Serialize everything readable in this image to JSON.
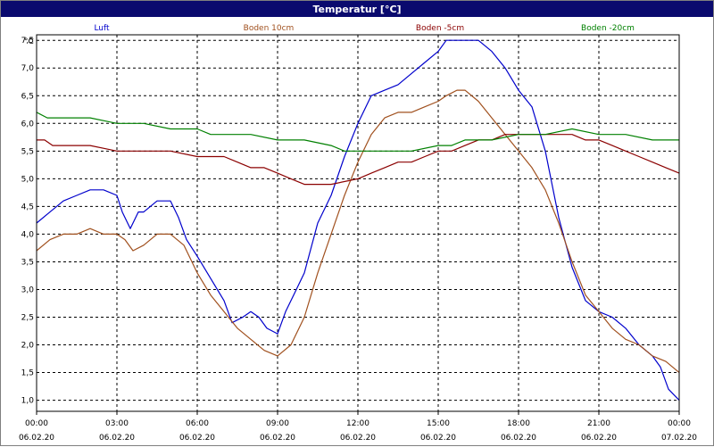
{
  "window": {
    "title": "Temperatur [°C]"
  },
  "chart_data": {
    "type": "line",
    "ylabel": "°C",
    "ylim": [
      0.8,
      7.6
    ],
    "yticks": [
      1.0,
      1.5,
      2.0,
      2.5,
      3.0,
      3.5,
      4.0,
      4.5,
      5.0,
      5.5,
      6.0,
      6.5,
      7.0,
      7.5
    ],
    "ytick_labels": [
      "1,0",
      "1,5",
      "2,0",
      "2,5",
      "3,0",
      "3,5",
      "4,0",
      "4,5",
      "5,0",
      "5,5",
      "6,0",
      "6,5",
      "7,0",
      "7,5"
    ],
    "xlim": [
      0,
      24
    ],
    "xticks": [
      0,
      3,
      6,
      9,
      12,
      15,
      18,
      21,
      24
    ],
    "xtick_times": [
      "00:00",
      "03:00",
      "06:00",
      "09:00",
      "12:00",
      "15:00",
      "18:00",
      "21:00",
      "00:00"
    ],
    "xtick_dates": [
      "06.02.20",
      "06.02.20",
      "06.02.20",
      "06.02.20",
      "06.02.20",
      "06.02.20",
      "06.02.20",
      "06.02.20",
      "07.02.20"
    ],
    "grid": true,
    "legend_position": "top",
    "series": [
      {
        "name": "Luft",
        "color": "#0000cc",
        "x": [
          0,
          0.5,
          1,
          1.5,
          2,
          2.5,
          3,
          3.2,
          3.5,
          3.8,
          4,
          4.5,
          5,
          5.3,
          5.6,
          6,
          6.5,
          7,
          7.3,
          7.7,
          8,
          8.3,
          8.6,
          9,
          9.3,
          9.6,
          10,
          10.5,
          11,
          11.5,
          12,
          12.5,
          13,
          13.5,
          14,
          14.5,
          15,
          15.3,
          15.7,
          16,
          16.5,
          17,
          17.5,
          18,
          18.5,
          19,
          19.5,
          20,
          20.5,
          21,
          21.5,
          22,
          22.5,
          23,
          23.3,
          23.6,
          24
        ],
        "y": [
          4.2,
          4.4,
          4.6,
          4.7,
          4.8,
          4.8,
          4.7,
          4.4,
          4.1,
          4.4,
          4.4,
          4.6,
          4.6,
          4.3,
          3.9,
          3.6,
          3.2,
          2.8,
          2.4,
          2.5,
          2.6,
          2.5,
          2.3,
          2.2,
          2.6,
          2.9,
          3.3,
          4.2,
          4.7,
          5.4,
          6.0,
          6.5,
          6.6,
          6.7,
          6.9,
          7.1,
          7.3,
          7.5,
          7.5,
          7.5,
          7.5,
          7.3,
          7.0,
          6.6,
          6.3,
          5.5,
          4.3,
          3.4,
          2.8,
          2.6,
          2.5,
          2.3,
          2.0,
          1.8,
          1.6,
          1.2,
          1.0
        ]
      },
      {
        "name": "Boden 10cm",
        "color": "#a0501e",
        "x": [
          0,
          0.5,
          1,
          1.5,
          2,
          2.5,
          3,
          3.3,
          3.6,
          4,
          4.5,
          5,
          5.5,
          6,
          6.5,
          7,
          7.5,
          8,
          8.5,
          9,
          9.5,
          10,
          10.5,
          11,
          11.5,
          12,
          12.5,
          13,
          13.5,
          14,
          14.5,
          15,
          15.3,
          15.7,
          16,
          16.5,
          17,
          17.5,
          18,
          18.5,
          19,
          19.5,
          20,
          20.5,
          21,
          21.5,
          22,
          22.5,
          23,
          23.5,
          24
        ],
        "y": [
          3.7,
          3.9,
          4.0,
          4.0,
          4.1,
          4.0,
          4.0,
          3.9,
          3.7,
          3.8,
          4.0,
          4.0,
          3.8,
          3.3,
          2.9,
          2.6,
          2.3,
          2.1,
          1.9,
          1.8,
          2.0,
          2.5,
          3.3,
          4.0,
          4.7,
          5.3,
          5.8,
          6.1,
          6.2,
          6.2,
          6.3,
          6.4,
          6.5,
          6.6,
          6.6,
          6.4,
          6.1,
          5.8,
          5.5,
          5.2,
          4.8,
          4.2,
          3.5,
          2.9,
          2.6,
          2.3,
          2.1,
          2.0,
          1.8,
          1.7,
          1.5
        ]
      },
      {
        "name": "Boden -5cm",
        "color": "#8b0000",
        "x": [
          0,
          0.3,
          0.6,
          1,
          2,
          3,
          4,
          5,
          6,
          7,
          7.5,
          8,
          8.5,
          9,
          9.5,
          10,
          11,
          12,
          12.5,
          13,
          13.5,
          14,
          14.5,
          15,
          15.5,
          16,
          16.5,
          17,
          17.5,
          18,
          18.5,
          19,
          19.5,
          20,
          20.5,
          21,
          21.5,
          22,
          22.5,
          23,
          23.5,
          24
        ],
        "y": [
          5.7,
          5.7,
          5.6,
          5.6,
          5.6,
          5.5,
          5.5,
          5.5,
          5.4,
          5.4,
          5.3,
          5.2,
          5.2,
          5.1,
          5.0,
          4.9,
          4.9,
          5.0,
          5.1,
          5.2,
          5.3,
          5.3,
          5.4,
          5.5,
          5.5,
          5.6,
          5.7,
          5.7,
          5.8,
          5.8,
          5.8,
          5.8,
          5.8,
          5.8,
          5.7,
          5.7,
          5.6,
          5.5,
          5.4,
          5.3,
          5.2,
          5.1
        ]
      },
      {
        "name": "Boden -20cm",
        "color": "#008000",
        "x": [
          0,
          0.4,
          1,
          2,
          3,
          4,
          5,
          6,
          6.5,
          7,
          8,
          9,
          10,
          11,
          11.5,
          12,
          13,
          14,
          15,
          15.5,
          16,
          17,
          18,
          19,
          20,
          21,
          22,
          23,
          24
        ],
        "y": [
          6.2,
          6.1,
          6.1,
          6.1,
          6.0,
          6.0,
          5.9,
          5.9,
          5.8,
          5.8,
          5.8,
          5.7,
          5.7,
          5.6,
          5.5,
          5.5,
          5.5,
          5.5,
          5.6,
          5.6,
          5.7,
          5.7,
          5.8,
          5.8,
          5.9,
          5.8,
          5.8,
          5.7,
          5.7
        ]
      }
    ]
  }
}
